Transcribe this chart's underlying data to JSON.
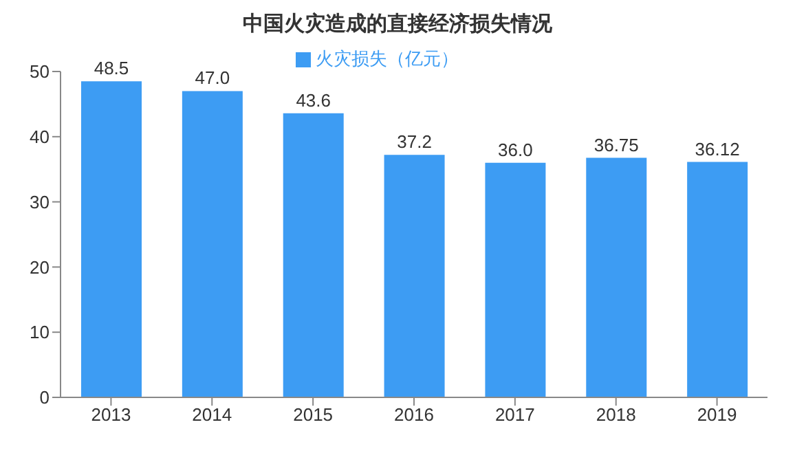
{
  "chart_data": {
    "type": "bar",
    "title": "中国火灾造成的直接经济损失情况",
    "categories": [
      "2013",
      "2014",
      "2015",
      "2016",
      "2017",
      "2018",
      "2019"
    ],
    "series": [
      {
        "name": "火灾损失（亿元）",
        "color": "#3d9cf3",
        "values": [
          48.5,
          47.0,
          43.6,
          37.2,
          36.0,
          36.75,
          36.12
        ],
        "value_labels": [
          "48.5",
          "47.0",
          "43.6",
          "37.2",
          "36.0",
          "36.75",
          "36.12"
        ]
      }
    ],
    "ylim": [
      0,
      50
    ],
    "yticks": [
      0,
      10,
      20,
      30,
      40,
      50
    ],
    "grid": false,
    "legend": "top"
  }
}
